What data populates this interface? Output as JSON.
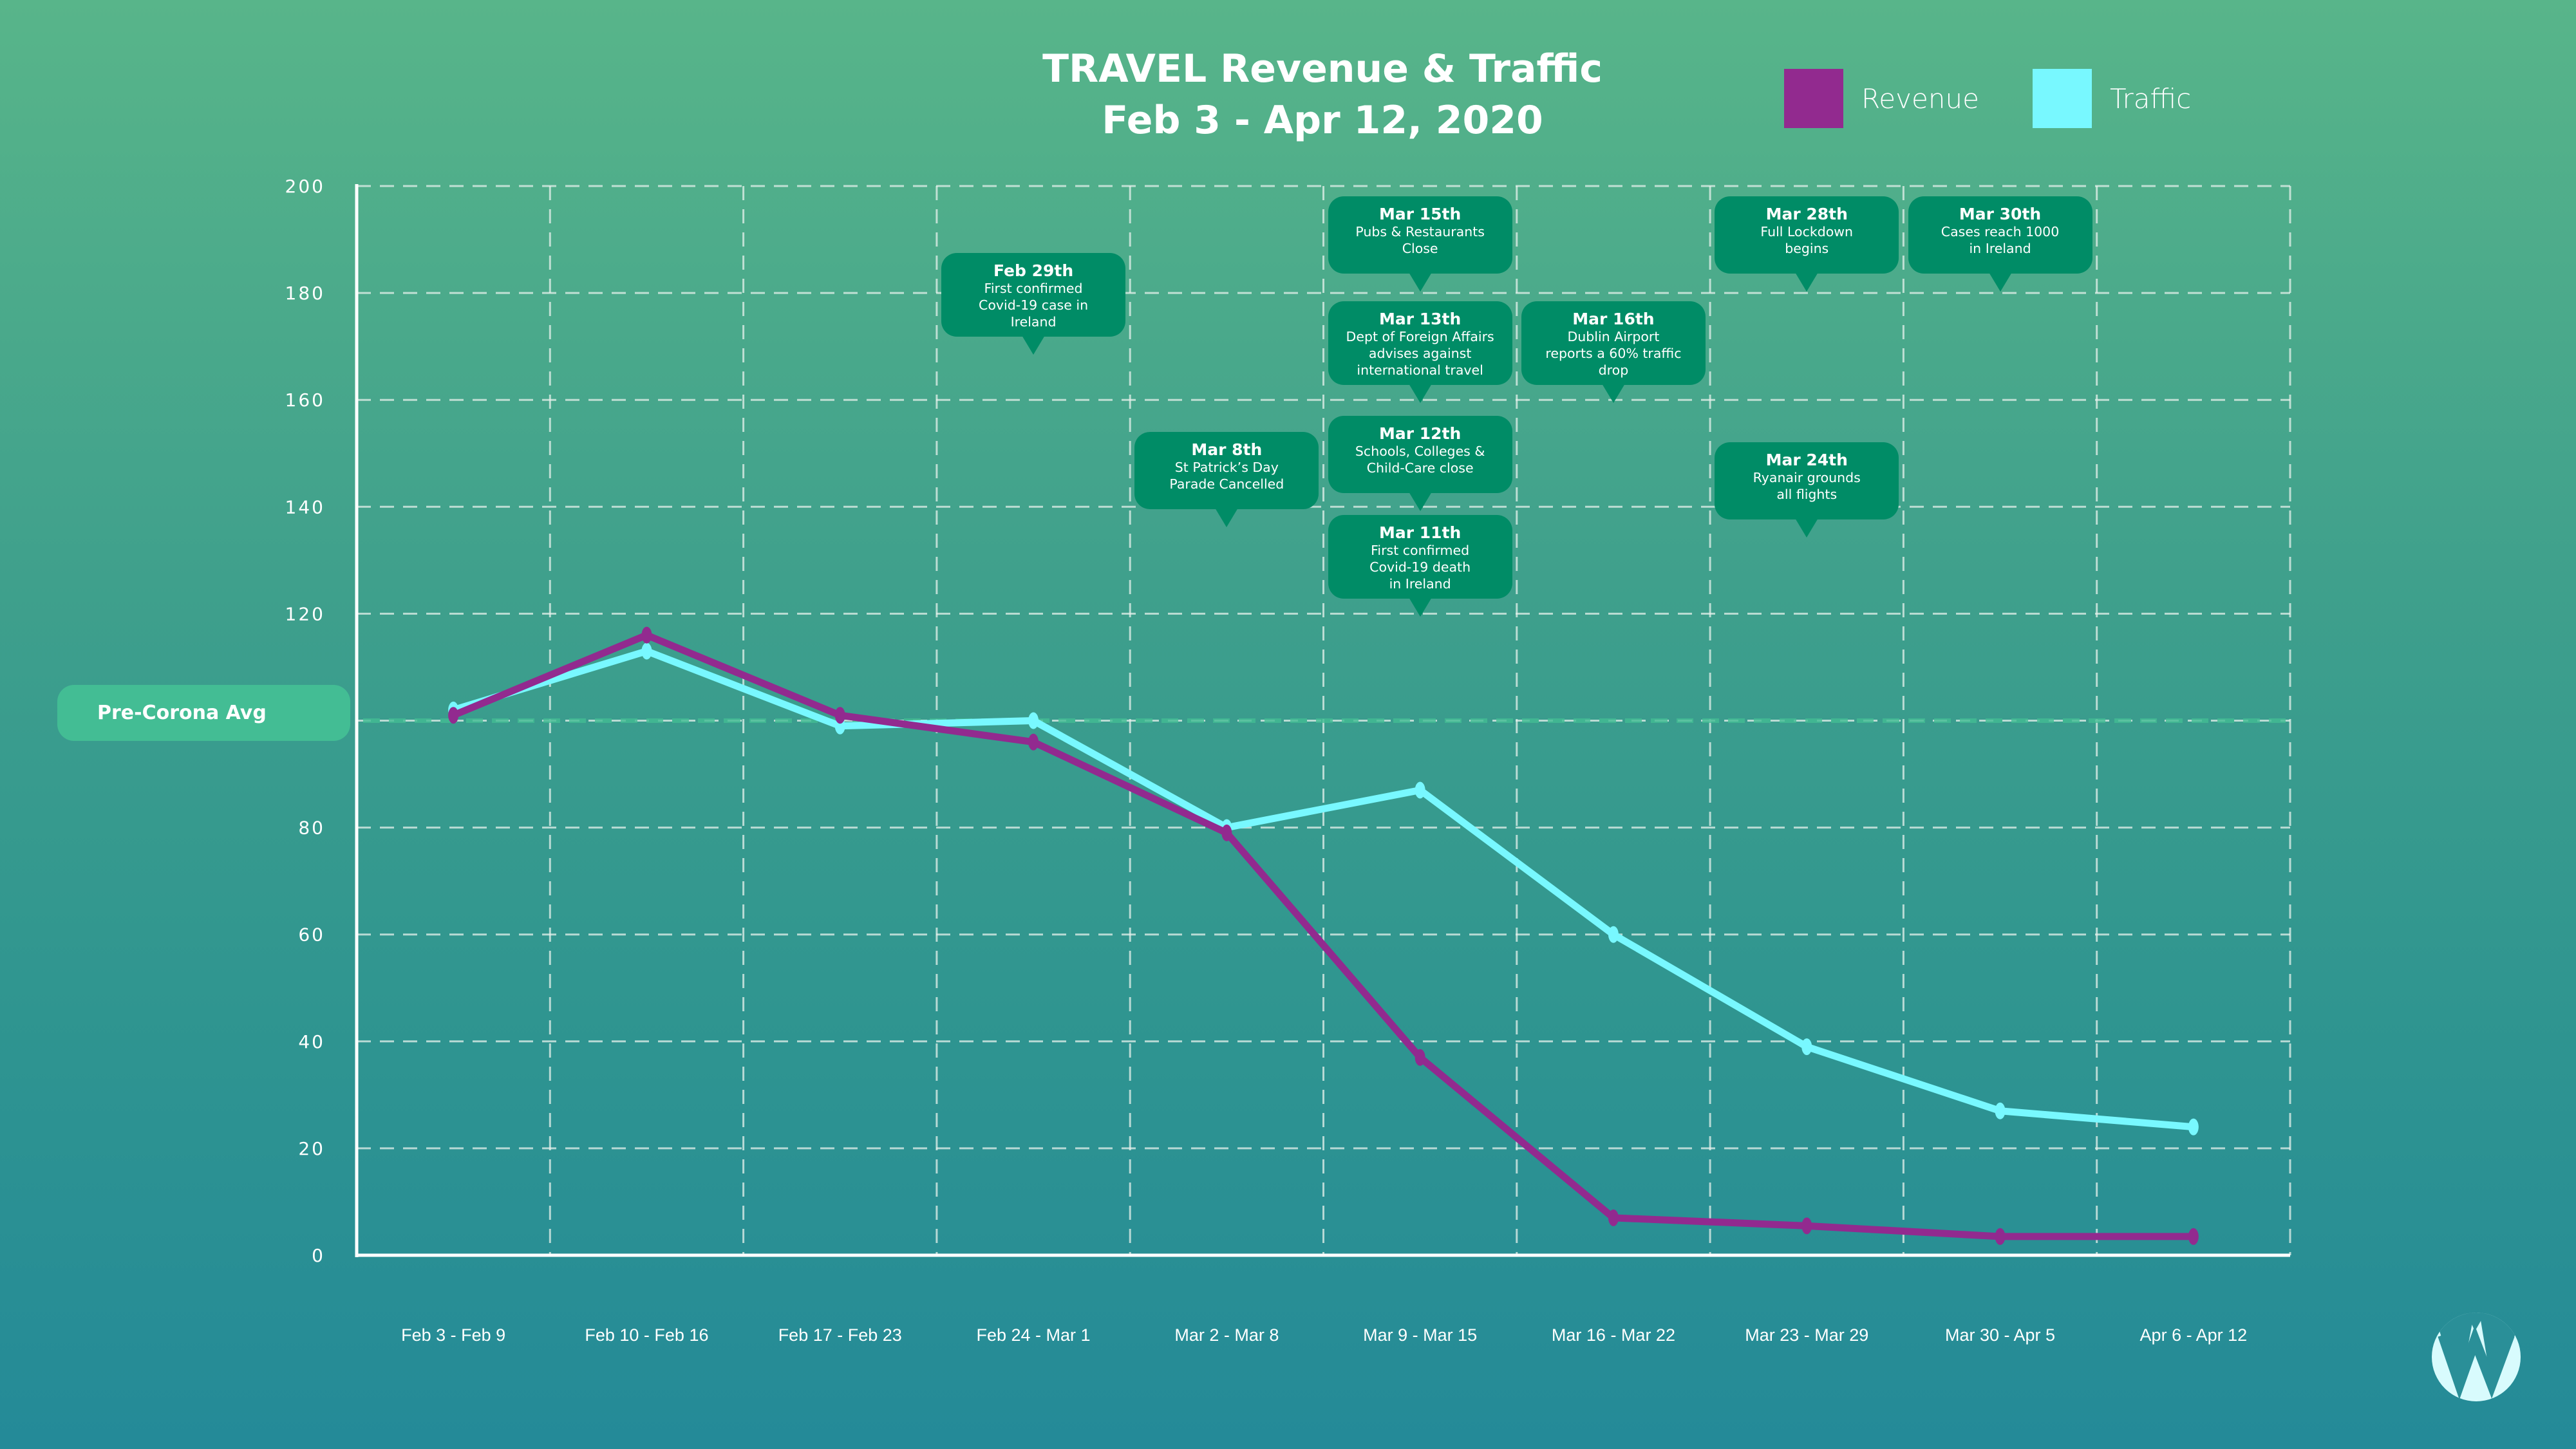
{
  "title": {
    "line1": "TRAVEL Revenue & Traffic",
    "line2": "Feb 3 - Apr 12, 2020"
  },
  "legend": [
    {
      "label": "Revenue",
      "color": "#922a8f"
    },
    {
      "label": "Traffic",
      "color": "#78f8ff"
    }
  ],
  "reference_line": {
    "label": "Pre-Corona Avg",
    "value": 100,
    "color": "#43bd94"
  },
  "chart_data": {
    "type": "line",
    "title": "TRAVEL Revenue & Traffic Feb 3 - Apr 12, 2020",
    "xlabel": "",
    "ylabel": "",
    "ylim": [
      0,
      200
    ],
    "yticks": [
      "0",
      "20",
      "40",
      "60",
      "80",
      "100",
      "120",
      "140",
      "160",
      "180",
      "200"
    ],
    "grid": true,
    "legend_position": "top-right",
    "categories": [
      "Feb 3 - Feb 9",
      "Feb 10 - Feb 16",
      "Feb 17 - Feb 23",
      "Feb 24 - Mar 1",
      "Mar 2 - Mar 8",
      "Mar 9 - Mar 15",
      "Mar 16 - Mar 22",
      "Mar 23 - Mar 29",
      "Mar 30 - Apr 5",
      "Apr 6 - Apr 12"
    ],
    "series": [
      {
        "name": "Revenue",
        "color": "#922a8f",
        "values": [
          101,
          116,
          101,
          96,
          79,
          37,
          7,
          5.5,
          3.5,
          3.5
        ]
      },
      {
        "name": "Traffic",
        "color": "#78f8ff",
        "values": [
          102,
          113,
          99,
          100,
          80,
          87,
          60,
          39,
          27,
          24
        ]
      }
    ],
    "annotations": [
      {
        "date": "Feb 29th",
        "text": "First confirmed\nCovid-19 case in\nIreland",
        "category": "Feb 24 - Mar 1",
        "value": 168
      },
      {
        "date": "Mar 8th",
        "text": "St Patrick’s Day\nParade Cancelled",
        "category": "Mar 2 - Mar 8",
        "value": 136
      },
      {
        "date": "Mar 15th",
        "text": "Pubs & Restaurants\nClose",
        "category": "Mar 9 - Mar 15",
        "value": 180
      },
      {
        "date": "Mar 13th",
        "text": "Dept of Foreign Affairs\nadvises against\ninternational travel",
        "category": "Mar 9 - Mar 15",
        "value": 159
      },
      {
        "date": "Mar 12th",
        "text": "Schools, Colleges &\nChild-Care  close",
        "category": "Mar 9 - Mar 15",
        "value": 139
      },
      {
        "date": "Mar 11th",
        "text": "First confirmed\nCovid-19 death\nin Ireland",
        "category": "Mar 9 - Mar 15",
        "value": 119
      },
      {
        "date": "Mar 16th",
        "text": "Dublin Airport\nreports a 60% traffic\ndrop",
        "category": "Mar 16 - Mar 22",
        "value": 159
      },
      {
        "date": "Mar 28th",
        "text": "Full Lockdown\nbegins",
        "category": "Mar 23 - Mar 29",
        "value": 180
      },
      {
        "date": "Mar 30th",
        "text": "Cases reach 1000\nin Ireland",
        "category": "Mar 30 - Apr 5",
        "value": 180
      },
      {
        "date": "Mar 24th",
        "text": "Ryanair grounds\nall flights",
        "category": "Mar 23 - Mar 29",
        "value": 134
      }
    ]
  },
  "logo": {
    "name": "w-circle-logo",
    "color": "#d8fbfd"
  }
}
